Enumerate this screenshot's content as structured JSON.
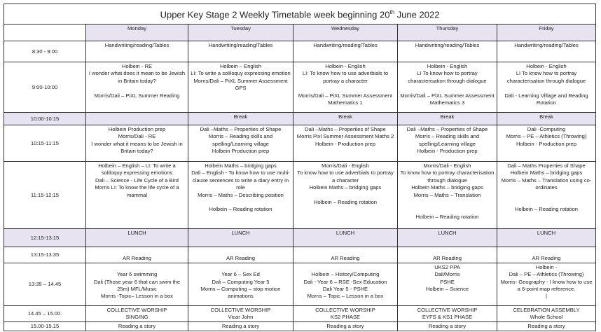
{
  "title": {
    "main": "Upper Key Stage 2 Weekly Timetable week beginning 20",
    "sup": "th",
    "tail": " June 2022"
  },
  "days": [
    "Monday",
    "Tuesday",
    "Wednesday",
    "Thursday",
    "Friday"
  ],
  "shade_color": "#e8e3f0",
  "rows": [
    {
      "time": "8:30 - 9:00",
      "cells": [
        "Handwriting/reading/Tables",
        "Handwriting/reading/Tables",
        "Handwriting/reading/Tables",
        "Handwriting/reading/Tables",
        "Handwriting/reading/Tables"
      ]
    },
    {
      "time": "9:00-10:00",
      "cells": [
        "Holbein - RE\nI wonder what does it mean to be Jewish in Britain today?\n\nMorris/Dali – PiXL Summer Reading",
        "Holbein – English\nLI: To write a soliloquy expressing emotion\nMorris/Dali – PiXL Summer Assessment GPS",
        "Holbein - English\nLI:  To know how to use adverbials to portray a character\n\nMorris/Dali – PiXL Summer Assessment Mathematics 1",
        "Holbein - English\nLI To know how to portray characterisation through dialogue\n\nMorris/Dali – PiXL Summer Assessment Mathematics 3",
        "Holbein - English\nLI To know how to portray characterisation through dialogue\n\nDali - Learning Village and Reading Rotation"
      ]
    },
    {
      "time": "10:00-10:15",
      "shade": true,
      "cells": [
        "",
        "Break",
        "Break",
        "Break",
        "Break"
      ]
    },
    {
      "time": "10:15-11:15",
      "cells": [
        "Holbein Production prep\nMorris/Dali - RE\nI wonder what it means to be Jewish in Britain today?",
        "Dali –Maths – Properties of Shape\nMorris – Reading skills and spelling/Learning village\nHolbein Production prep",
        "Dali –Maths – Properties of Shape\nMorris Pixl Summer Assessment Maths 2\nHolbein - Production prep",
        "Dali –Maths – Properties of Shape\nMorris – Reading skills and spelling/Learning village\nHolbein - Production prep",
        "Dali -Computing\nMorris – PE – Athletics (Throwing)\nHolbein - Production prep"
      ]
    },
    {
      "time": "11:15-12:15",
      "cells": [
        "Holbein – English – LI: To write a soliloquy expressing emotions\nDali – Science - Life Cycle of a Bird\nMorris LI: To know the life cycle of a mammal",
        "Holbein Maths – bridging gaps\nDali – English - To know how to use multi-clause sentences to write a diary entry in role\nMorris – Maths – Describing position\n\nHolbein – Reading rotation",
        "Morris/Dali - English\nTo know how to use adverbials to portray a character\nHolbein Maths – bridging gaps\n\nHolbein – Reading rotation",
        "Morris/Dali - English\nTo know how to portray characterisation through dialogue\nHolbein Maths – bridging gaps\nMorris – Maths – Translation\n\n\nHolbein – Reading rotation",
        "Dali – Maths Properties of Shape\nHolbein Maths – bridging gaps\nMorris – Maths – Translation using co-ordinates\n\n\nHolbein – Reading rotation"
      ]
    },
    {
      "time": "12:15-13:15",
      "shade": true,
      "cells": [
        "LUNCH",
        "LUNCH",
        "LUNCH",
        "LUNCH",
        "LUNCH"
      ]
    },
    {
      "time": "13:15-13:35",
      "cells": [
        "\nAR Reading",
        "\nAR Reading",
        "\nAR Reading",
        "\nAR Reading",
        "\nAR Reading"
      ]
    },
    {
      "time": "13:35 – 14.45",
      "cells": [
        "\nYear 6 swimming\nDali (Those year 6 that can swim the 25m) MFL/Music\nMorris -Topic– Lesson in a box",
        "\nYear 6 – Sex Ed\nDali – Computing Year 5\nMorris – Computing – stop motion animations",
        "\nHolbein – History/Computing\nDali - Year 6 – RSE -Sex Education\nDali Year 5 - PSHE\nMorris – Topic – Lesson in a box",
        "UKS2 PPA\nDali/Morris\nPSHE\nHolbein – Science",
        "Holbein -\nDali – PE – Athletics (Throwing)\nMorris- Geography - I know how to use a 6-point map reference.\n|"
      ]
    },
    {
      "time": "14.45 – 15.00.",
      "cells": [
        "COLLECTIVE WORSHIP\nSINGING",
        "COLLECTIVE WORSHIP\nVicar John",
        "COLLECTIVE WORSHIP\nKS2  PHASE",
        "COLLECTIVE WORSHIP\nEYFS & KS1 PHASE",
        "CELEBRATION ASSEMBLY\nWhole School"
      ]
    },
    {
      "time": "15.00-15.15",
      "cells": [
        "Reading a story",
        "Reading a story",
        "Reading a story",
        "Reading a story",
        "Reading a story"
      ]
    }
  ]
}
